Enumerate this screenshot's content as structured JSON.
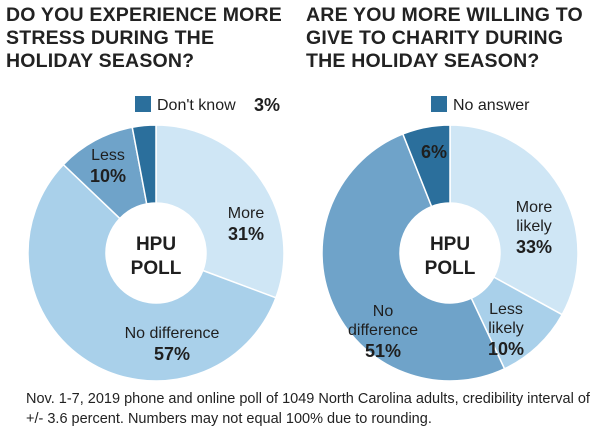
{
  "chart_data": [
    {
      "type": "pie",
      "title": "DO YOU EXPERIENCE MORE\nSTRESS DURING THE\nHOLIDAY SEASON?",
      "center_label": [
        "HPU",
        "POLL"
      ],
      "slices": [
        {
          "label": "More",
          "value": 31,
          "value_text": "31%",
          "color": "#cfe6f5"
        },
        {
          "label": "No difference",
          "value": 57,
          "value_text": "57%",
          "color": "#a9d0ea"
        },
        {
          "label": "Less",
          "value": 10,
          "value_text": "10%",
          "color": "#6fa3c9"
        },
        {
          "label": "Don't know",
          "value": 3,
          "value_text": "3%",
          "color": "#2b6f9c"
        }
      ],
      "legend_entry": {
        "label": "Don't know",
        "value_text": "3%"
      }
    },
    {
      "type": "pie",
      "title": "ARE YOU MORE WILLING TO\nGIVE TO CHARITY DURING\nTHE HOLIDAY SEASON?",
      "center_label": [
        "HPU",
        "POLL"
      ],
      "slices": [
        {
          "label": "More likely",
          "label_lines": [
            "More",
            "likely"
          ],
          "value": 33,
          "value_text": "33%",
          "color": "#cfe6f5"
        },
        {
          "label": "Less likely",
          "label_lines": [
            "Less",
            "likely"
          ],
          "value": 10,
          "value_text": "10%",
          "color": "#a9d0ea"
        },
        {
          "label": "No difference",
          "label_lines": [
            "No",
            "difference"
          ],
          "value": 51,
          "value_text": "51%",
          "color": "#6fa3c9"
        },
        {
          "label": "No answer",
          "value": 6,
          "value_text": "6%",
          "color": "#2b6f9c"
        }
      ],
      "legend_entry": {
        "label": "No answer"
      }
    }
  ],
  "footnote": "Nov. 1-7, 2019 phone and online poll of 1049 North Carolina adults, credibility interval of +/- 3.6 percent. Numbers may not equal 100% due to rounding."
}
